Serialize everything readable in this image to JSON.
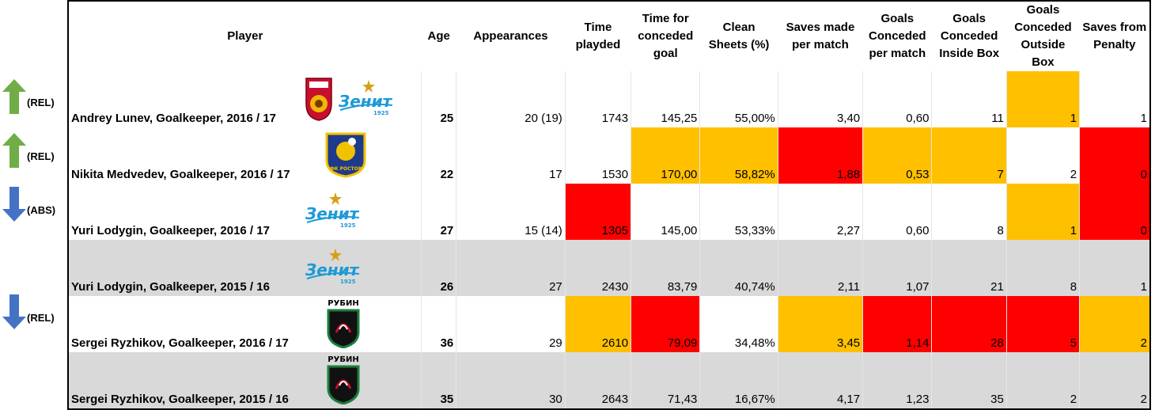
{
  "chart_data": {
    "type": "table",
    "columns": [
      "Player",
      "Age",
      "Appearances",
      "Time playded",
      "Time for conceded goal",
      "Clean Sheets (%)",
      "Saves made per match",
      "Goals Conceded per match",
      "Goals Conceded Inside Box",
      "Goals Conceded Outside Box",
      "Saves from Penalty"
    ],
    "rows": [
      {
        "status": "(REL)",
        "trend": "up",
        "logos": [
          "ufa",
          "zenit"
        ],
        "cells": [
          "Andrey Lunev, Goalkeeper, 2016 / 17",
          "25",
          "20 (19)",
          "1743",
          "145,25",
          "55,00%",
          "3,40",
          "0,60",
          "11",
          "1",
          "1"
        ],
        "colors": [
          "",
          "",
          "",
          "",
          "",
          "",
          "",
          "",
          "",
          "orange",
          ""
        ]
      },
      {
        "status": "(REL)",
        "trend": "up",
        "logos": [
          "rostov"
        ],
        "cells": [
          "Nikita Medvedev, Goalkeeper, 2016 / 17",
          "22",
          "17",
          "1530",
          "170,00",
          "58,82%",
          "1,88",
          "0,53",
          "7",
          "2",
          "0"
        ],
        "colors": [
          "",
          "",
          "",
          "",
          "orange",
          "orange",
          "red",
          "orange",
          "orange",
          "",
          "red"
        ]
      },
      {
        "status": "(ABS)",
        "trend": "down",
        "logos": [
          "zenit"
        ],
        "cells": [
          "Yuri Lodygin, Goalkeeper, 2016 / 17",
          "27",
          "15 (14)",
          "1305",
          "145,00",
          "53,33%",
          "2,27",
          "0,60",
          "8",
          "1",
          "0"
        ],
        "colors": [
          "",
          "",
          "",
          "red",
          "",
          "",
          "",
          "",
          "",
          "orange",
          "red"
        ]
      },
      {
        "status": "",
        "trend": "",
        "logos": [
          "zenit"
        ],
        "grey": true,
        "cells": [
          "Yuri Lodygin, Goalkeeper, 2015 / 16",
          "26",
          "27",
          "2430",
          "83,79",
          "40,74%",
          "2,11",
          "1,07",
          "21",
          "8",
          "1"
        ],
        "colors": [
          "",
          "",
          "",
          "",
          "",
          "",
          "",
          "",
          "",
          "",
          ""
        ]
      },
      {
        "status": "(REL)",
        "trend": "down",
        "logos": [
          "rubin"
        ],
        "cells": [
          "Sergei Ryzhikov, Goalkeeper, 2016 / 17",
          "36",
          "29",
          "2610",
          "79,09",
          "34,48%",
          "3,45",
          "1,14",
          "28",
          "5",
          "2"
        ],
        "colors": [
          "",
          "",
          "",
          "orange",
          "red",
          "",
          "orange",
          "red",
          "red",
          "red",
          "orange"
        ]
      },
      {
        "status": "",
        "trend": "",
        "logos": [
          "rubin"
        ],
        "grey": true,
        "cells": [
          "Sergei Ryzhikov, Goalkeeper, 2015 / 16",
          "35",
          "30",
          "2643",
          "71,43",
          "16,67%",
          "4,17",
          "1,23",
          "35",
          "2",
          "2"
        ],
        "colors": [
          "",
          "",
          "",
          "",
          "",
          "",
          "",
          "",
          "",
          "",
          ""
        ]
      }
    ]
  },
  "logo_text": {
    "zenit": "Зенит",
    "zenit_year": "1925",
    "rubin": "РУБИН",
    "rostov": "ФК РОСТОВ"
  },
  "colors": {
    "orange": "#ffc000",
    "red": "#ff0000",
    "grey": "#d9d9d9",
    "up": "#70ad47",
    "down": "#4472c4"
  }
}
